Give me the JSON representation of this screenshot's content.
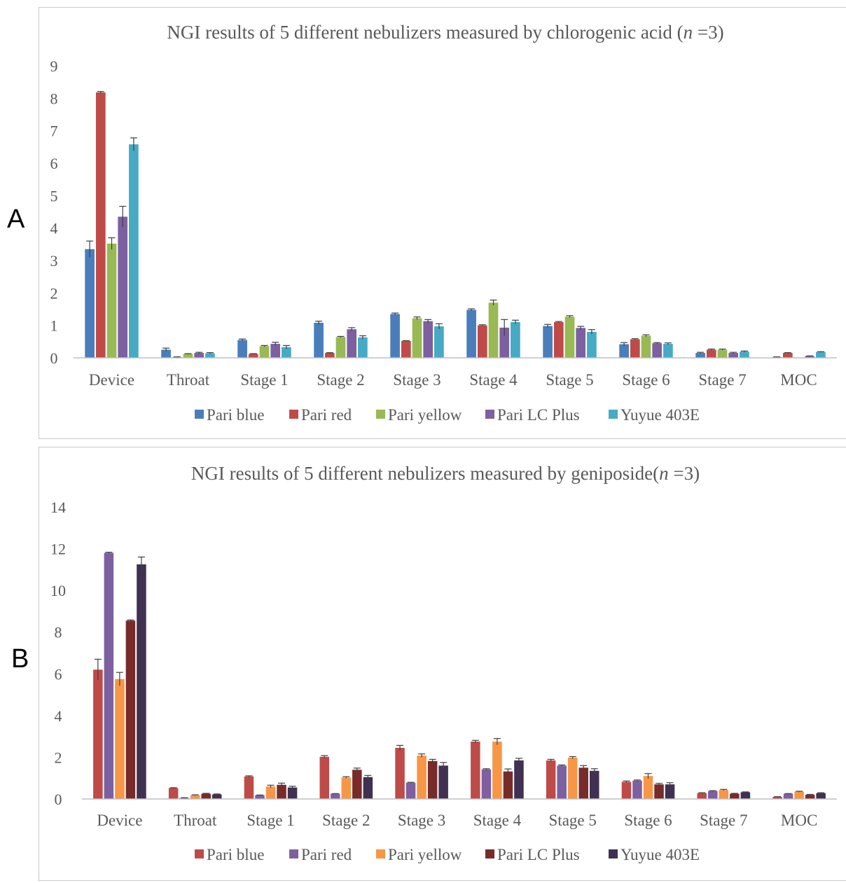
{
  "panels": {
    "a": "A",
    "b": "B"
  },
  "chart_data": [
    {
      "type": "bar",
      "title_main": "NGI results of 5 different nebulizers measured by chlorogenic acid (",
      "title_italic": "n",
      "title_tail": " =3)",
      "ylim": [
        0,
        9
      ],
      "yticks": [
        0,
        1,
        2,
        3,
        4,
        5,
        6,
        7,
        8,
        9
      ],
      "grid": false,
      "legend_position": "bottom",
      "error_bars": true,
      "categories": [
        "Device",
        "Throat",
        "Stage 1",
        "Stage 2",
        "Stage 3",
        "Stage 4",
        "Stage 5",
        "Stage 6",
        "Stage 7",
        "MOC"
      ],
      "series": [
        {
          "name": "Pari blue",
          "color": "#4a7ebb",
          "values": [
            3.35,
            0.25,
            0.55,
            1.08,
            1.35,
            1.48,
            0.98,
            0.42,
            0.15,
            0.02
          ],
          "errors": [
            0.25,
            0.05,
            0.03,
            0.05,
            0.03,
            0.03,
            0.05,
            0.05,
            0.02,
            0.01
          ]
        },
        {
          "name": "Pari red",
          "color": "#be4b48",
          "values": [
            8.18,
            0.02,
            0.12,
            0.15,
            0.52,
            1.0,
            1.1,
            0.57,
            0.25,
            0.15
          ],
          "errors": [
            0.03,
            0.01,
            0.01,
            0.01,
            0.01,
            0.02,
            0.02,
            0.02,
            0.02,
            0.01
          ]
        },
        {
          "name": "Pari yellow",
          "color": "#98b954",
          "values": [
            3.52,
            0.12,
            0.36,
            0.64,
            1.22,
            1.7,
            1.27,
            0.68,
            0.25,
            0.0
          ],
          "errors": [
            0.18,
            0.01,
            0.02,
            0.02,
            0.04,
            0.08,
            0.03,
            0.03,
            0.02,
            0.0
          ]
        },
        {
          "name": "Pari LC Plus",
          "color": "#7d60a0",
          "values": [
            4.35,
            0.15,
            0.43,
            0.88,
            1.13,
            0.93,
            0.92,
            0.45,
            0.15,
            0.05
          ],
          "errors": [
            0.32,
            0.02,
            0.05,
            0.05,
            0.05,
            0.25,
            0.05,
            0.02,
            0.02,
            0.01
          ]
        },
        {
          "name": "Yuyue 403E",
          "color": "#46aac5",
          "values": [
            6.58,
            0.14,
            0.33,
            0.63,
            0.97,
            1.1,
            0.8,
            0.43,
            0.19,
            0.18
          ],
          "errors": [
            0.2,
            0.02,
            0.05,
            0.05,
            0.08,
            0.06,
            0.07,
            0.03,
            0.02,
            0.01
          ]
        }
      ]
    },
    {
      "type": "bar",
      "title_main": "NGI results of 5 different nebulizers measured by geniposide(",
      "title_italic": "n",
      "title_tail": " =3)",
      "ylim": [
        0,
        14
      ],
      "yticks": [
        0,
        2,
        4,
        6,
        8,
        10,
        12,
        14
      ],
      "grid": false,
      "legend_position": "bottom",
      "error_bars": true,
      "categories": [
        "Device",
        "Throat",
        "Stage 1",
        "Stage 2",
        "Stage 3",
        "Stage 4",
        "Stage 5",
        "Stage 6",
        "Stage 7",
        "MOC"
      ],
      "series": [
        {
          "name": "Pari blue",
          "color": "#be4b48",
          "values": [
            6.2,
            0.52,
            1.08,
            2.02,
            2.45,
            2.75,
            1.85,
            0.82,
            0.28,
            0.1
          ],
          "errors": [
            0.5,
            0.02,
            0.03,
            0.06,
            0.12,
            0.06,
            0.05,
            0.04,
            0.02,
            0.01
          ]
        },
        {
          "name": "Pari red",
          "color": "#7d60a0",
          "values": [
            11.8,
            0.05,
            0.18,
            0.25,
            0.78,
            1.42,
            1.6,
            0.88,
            0.38,
            0.25
          ],
          "errors": [
            0.03,
            0.01,
            0.01,
            0.01,
            0.02,
            0.03,
            0.03,
            0.03,
            0.02,
            0.01
          ]
        },
        {
          "name": "Pari yellow",
          "color": "#f79646",
          "values": [
            5.75,
            0.18,
            0.6,
            1.03,
            2.08,
            2.75,
            1.98,
            1.1,
            0.43,
            0.35
          ],
          "errors": [
            0.32,
            0.02,
            0.06,
            0.04,
            0.08,
            0.15,
            0.05,
            0.12,
            0.03,
            0.02
          ]
        },
        {
          "name": "Pari LC Plus",
          "color": "#772c2a",
          "values": [
            8.55,
            0.25,
            0.68,
            1.4,
            1.82,
            1.32,
            1.5,
            0.7,
            0.25,
            0.2
          ],
          "errors": [
            0.03,
            0.02,
            0.08,
            0.08,
            0.08,
            0.12,
            0.1,
            0.05,
            0.02,
            0.02
          ]
        },
        {
          "name": "Yuyue 403E",
          "color": "#403152",
          "values": [
            11.25,
            0.22,
            0.55,
            1.05,
            1.6,
            1.85,
            1.35,
            0.7,
            0.32,
            0.28
          ],
          "errors": [
            0.35,
            0.02,
            0.06,
            0.08,
            0.15,
            0.1,
            0.1,
            0.08,
            0.02,
            0.02
          ]
        }
      ]
    }
  ]
}
